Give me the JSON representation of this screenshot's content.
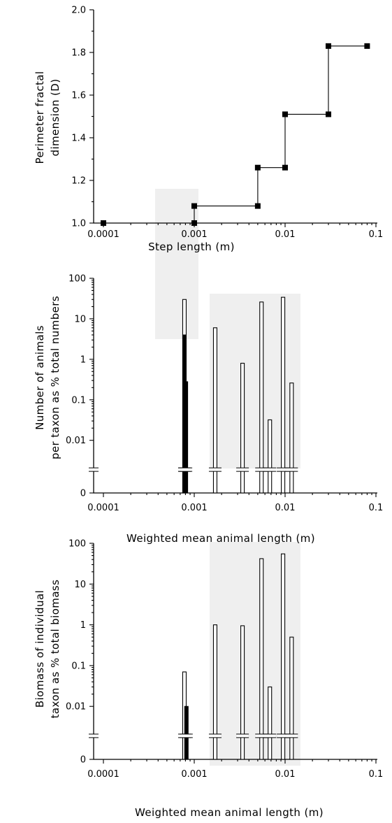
{
  "chart_data": [
    {
      "type": "line",
      "step": true,
      "x_scale": "log",
      "xlim": [
        0.0001,
        0.1
      ],
      "ylim": [
        1.0,
        2.0
      ],
      "xlabel": "Step length (m)",
      "ylabel": [
        "Perimeter fractal",
        "dimension (D)"
      ],
      "x_tick_labels": [
        "0.0001",
        "0.001",
        "0.01",
        "0.1"
      ],
      "y_tick_labels": [
        "1.0",
        "1.2",
        "1.4",
        "1.6",
        "1.8",
        "2.0"
      ],
      "points": [
        {
          "x": 0.0001,
          "y": 1.0
        },
        {
          "x": 0.001,
          "y": 1.0
        },
        {
          "x": 0.001,
          "y": 1.08
        },
        {
          "x": 0.005,
          "y": 1.08
        },
        {
          "x": 0.005,
          "y": 1.26
        },
        {
          "x": 0.01,
          "y": 1.26
        },
        {
          "x": 0.01,
          "y": 1.51
        },
        {
          "x": 0.03,
          "y": 1.51
        },
        {
          "x": 0.03,
          "y": 1.83
        },
        {
          "x": 0.08,
          "y": 1.83
        }
      ]
    },
    {
      "type": "bar",
      "x_scale": "log",
      "y_scale": "log",
      "y_axis_break": true,
      "xlim": [
        0.0001,
        0.1
      ],
      "ylim": [
        0.001,
        100
      ],
      "xlabel": "Weighted mean animal length (m)",
      "ylabel": [
        "Number of animals",
        "per taxon as % total numbers"
      ],
      "x_tick_labels": [
        "0.0001",
        "0.001",
        "0.01",
        "0.1"
      ],
      "y_tick_labels": [
        "0",
        "0.01",
        "0.1",
        "1",
        "10",
        "100"
      ],
      "bars": [
        {
          "x": 0.00078,
          "value": 30,
          "filled": false
        },
        {
          "x": 0.00078,
          "value": 4,
          "filled": true
        },
        {
          "x": 0.00081,
          "value": 0.28,
          "filled": true
        },
        {
          "x": 0.0017,
          "value": 6,
          "filled": false
        },
        {
          "x": 0.0034,
          "value": 0.8,
          "filled": false
        },
        {
          "x": 0.0055,
          "value": 26,
          "filled": false
        },
        {
          "x": 0.0068,
          "value": 0.032,
          "filled": false
        },
        {
          "x": 0.0095,
          "value": 34,
          "filled": false
        },
        {
          "x": 0.0118,
          "value": 0.26,
          "filled": false
        }
      ]
    },
    {
      "type": "bar",
      "x_scale": "log",
      "y_scale": "log",
      "y_axis_break": true,
      "xlim": [
        0.0001,
        0.1
      ],
      "ylim": [
        0.001,
        100
      ],
      "xlabel": "Weighted mean animal length (m)",
      "ylabel": [
        "Biomass of individual",
        "taxon as % total biomass"
      ],
      "x_tick_labels": [
        "0.0001",
        "0.001",
        "0.01",
        "0.1"
      ],
      "y_tick_labels": [
        "0",
        "0.01",
        "0.1",
        "1",
        "10",
        "100"
      ],
      "bars": [
        {
          "x": 0.00078,
          "value": 0.07,
          "filled": false
        },
        {
          "x": 0.00082,
          "value": 0.01,
          "filled": true
        },
        {
          "x": 0.0017,
          "value": 1,
          "filled": false
        },
        {
          "x": 0.0034,
          "value": 0.95,
          "filled": false
        },
        {
          "x": 0.0055,
          "value": 42,
          "filled": false
        },
        {
          "x": 0.0068,
          "value": 0.03,
          "filled": false
        },
        {
          "x": 0.0095,
          "value": 55,
          "filled": false
        },
        {
          "x": 0.0118,
          "value": 0.5,
          "filled": false
        }
      ]
    }
  ]
}
